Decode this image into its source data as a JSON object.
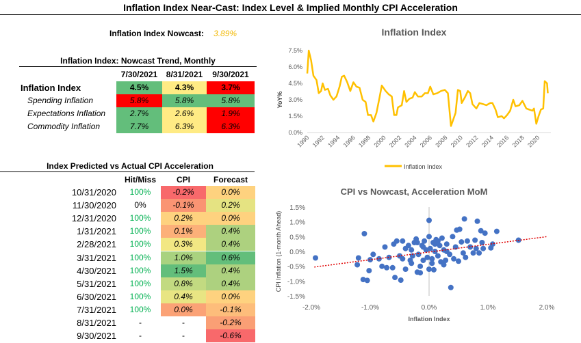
{
  "title": "Inflation Index Near-Cast: Index Level & Implied Monthly CPI Acceleration",
  "nowcast": {
    "label": "Inflation Index Nowcast:",
    "value": "3.89%"
  },
  "trend": {
    "title": "Inflation Index: Nowcast Trend, Monthly",
    "columns": [
      "7/30/2021",
      "8/31/2021",
      "9/30/2021"
    ],
    "rows": [
      {
        "label": "Inflation Index",
        "cells": [
          {
            "v": "4.5%",
            "c": "#63be7b"
          },
          {
            "v": "4.3%",
            "c": "#ffeb84"
          },
          {
            "v": "3.7%",
            "c": "#ff0000"
          }
        ]
      },
      {
        "label": "Spending Inflation",
        "cells": [
          {
            "v": "5.8%",
            "c": "#ff0000"
          },
          {
            "v": "5.8%",
            "c": "#63be7b"
          },
          {
            "v": "5.8%",
            "c": "#63be7b"
          }
        ]
      },
      {
        "label": "Expectations Inflation",
        "cells": [
          {
            "v": "2.7%",
            "c": "#63be7b"
          },
          {
            "v": "2.6%",
            "c": "#ffeb84"
          },
          {
            "v": "1.9%",
            "c": "#ff0000"
          }
        ]
      },
      {
        "label": "Commodity Inflation",
        "cells": [
          {
            "v": "7.7%",
            "c": "#63be7b"
          },
          {
            "v": "6.3%",
            "c": "#ffeb84"
          },
          {
            "v": "6.3%",
            "c": "#ff0000"
          }
        ]
      }
    ]
  },
  "accel": {
    "title": "Index Predicted vs Actual CPI Acceleration",
    "columns": [
      "Hit/Miss",
      "CPI",
      "Forecast"
    ],
    "hit_color": "#00b050",
    "rows": [
      {
        "date": "10/31/2020",
        "hit": "100%",
        "cpi": "-0.2%",
        "cpi_c": "#f8696b",
        "fc": "0.0%",
        "fc_c": "#fed27f"
      },
      {
        "date": "11/30/2020",
        "hit": "0%",
        "cpi": "-0.1%",
        "cpi_c": "#fa9473",
        "fc": "0.2%",
        "fc_c": "#e5e382"
      },
      {
        "date": "12/31/2020",
        "hit": "100%",
        "cpi": "0.2%",
        "cpi_c": "#fed27f",
        "fc": "0.0%",
        "fc_c": "#fed27f"
      },
      {
        "date": "1/31/2021",
        "hit": "100%",
        "cpi": "0.1%",
        "cpi_c": "#fcb079",
        "fc": "0.4%",
        "fc_c": "#add17f"
      },
      {
        "date": "2/28/2021",
        "hit": "100%",
        "cpi": "0.3%",
        "cpi_c": "#f2e783",
        "fc": "0.4%",
        "fc_c": "#add17f"
      },
      {
        "date": "3/31/2021",
        "hit": "100%",
        "cpi": "1.0%",
        "cpi_c": "#a9d27f",
        "fc": "0.6%",
        "fc_c": "#63be7b"
      },
      {
        "date": "4/30/2021",
        "hit": "100%",
        "cpi": "1.5%",
        "cpi_c": "#63be7b",
        "fc": "0.4%",
        "fc_c": "#add17f"
      },
      {
        "date": "5/31/2021",
        "hit": "100%",
        "cpi": "0.8%",
        "cpi_c": "#c2da81",
        "fc": "0.4%",
        "fc_c": "#add17f"
      },
      {
        "date": "6/30/2021",
        "hit": "100%",
        "cpi": "0.4%",
        "cpi_c": "#e8e583",
        "fc": "0.0%",
        "fc_c": "#fed27f"
      },
      {
        "date": "7/31/2021",
        "hit": "100%",
        "cpi": "0.0%",
        "cpi_c": "#fba276",
        "fc": "-0.1%",
        "fc_c": "#fdbd7b"
      },
      {
        "date": "8/31/2021",
        "hit": "-",
        "cpi": "-",
        "cpi_c": "",
        "fc": "-0.2%",
        "fc_c": "#fa9f75"
      },
      {
        "date": "9/30/2021",
        "hit": "-",
        "cpi": "-",
        "cpi_c": "",
        "fc": "-0.6%",
        "fc_c": "#f8696b"
      }
    ]
  },
  "chart_data": [
    {
      "type": "line",
      "title": "Inflation Index",
      "ylabel": "YoY%",
      "xlabel": "",
      "ylim": [
        0,
        7.5
      ],
      "yticks": [
        "0.0%",
        "1.5%",
        "3.0%",
        "4.5%",
        "6.0%",
        "7.5%"
      ],
      "xticks": [
        "1990",
        "1992",
        "1994",
        "1996",
        "1998",
        "2000",
        "2002",
        "2004",
        "2006",
        "2008",
        "2010",
        "2012",
        "2014",
        "2016",
        "2018",
        "2020"
      ],
      "legend": "Inflation Index",
      "legend_position": "bottom",
      "color": "#ffc000",
      "x": [
        1990.0,
        1990.2,
        1990.5,
        1990.8,
        1991.2,
        1991.5,
        1991.8,
        1992.0,
        1992.3,
        1992.7,
        1993.0,
        1993.4,
        1993.8,
        1994.2,
        1994.5,
        1994.8,
        1995.2,
        1995.6,
        1996.0,
        1996.4,
        1996.8,
        1997.2,
        1997.6,
        1997.9,
        1998.3,
        1998.6,
        1999.0,
        1999.4,
        1999.7,
        2000.2,
        2000.6,
        2001.0,
        2001.3,
        2001.6,
        2001.8,
        2002.3,
        2002.6,
        2002.9,
        2003.3,
        2003.7,
        2004.0,
        2004.4,
        2004.9,
        2005.3,
        2005.7,
        2006.0,
        2006.4,
        2006.9,
        2007.4,
        2007.9,
        2008.3,
        2008.7,
        2009.0,
        2009.3,
        2009.6,
        2009.9,
        2010.1,
        2010.5,
        2010.9,
        2011.2,
        2011.5,
        2012.0,
        2012.4,
        2012.9,
        2013.3,
        2013.8,
        2014.1,
        2014.5,
        2014.8,
        2015.3,
        2015.6,
        2016.0,
        2016.4,
        2016.8,
        2017.1,
        2017.6,
        2018.0,
        2018.5,
        2018.9,
        2019.3,
        2019.5,
        2019.8,
        2020.1,
        2020.4,
        2020.7,
        2020.9,
        2021.2,
        2021.3
      ],
      "y": [
        5.4,
        7.5,
        6.6,
        5.2,
        4.8,
        3.6,
        3.8,
        4.5,
        3.9,
        4.0,
        3.4,
        3.0,
        3.3,
        4.2,
        5.1,
        5.2,
        4.6,
        3.8,
        4.6,
        4.2,
        4.1,
        3.0,
        2.8,
        1.6,
        1.6,
        1.0,
        1.8,
        3.2,
        4.3,
        3.8,
        3.5,
        3.3,
        1.6,
        1.6,
        2.3,
        2.5,
        3.8,
        2.8,
        3.1,
        3.2,
        3.7,
        3.3,
        3.3,
        3.6,
        3.6,
        4.2,
        3.5,
        3.6,
        3.8,
        3.9,
        3.6,
        0.6,
        1.2,
        1.8,
        3.9,
        3.8,
        2.7,
        3.2,
        3.8,
        3.6,
        2.6,
        2.2,
        2.7,
        2.6,
        2.5,
        2.7,
        2.7,
        2.1,
        1.4,
        1.5,
        1.3,
        1.6,
        2.0,
        3.0,
        2.4,
        2.5,
        2.9,
        2.2,
        2.1,
        2.0,
        2.2,
        0.8,
        1.5,
        2.1,
        2.2,
        4.7,
        4.5,
        3.6
      ]
    },
    {
      "type": "scatter",
      "title": "CPI vs Nowcast, Acceleration MoM",
      "xlabel": "Inflation Index",
      "ylabel": "CPI Inflation (1-month Ahead)",
      "xlim": [
        -2,
        2
      ],
      "ylim": [
        -1.5,
        1.5
      ],
      "xticks": [
        "-2.0%",
        "-1.0%",
        "0.0%",
        "1.0%",
        "2.0%"
      ],
      "yticks": [
        "-1.5%",
        "-1.0%",
        "-0.5%",
        "0.0%",
        "0.5%",
        "1.0%",
        "1.5%"
      ],
      "color": "#4472c4",
      "trendline": {
        "slope": 0.26,
        "intercept": -0.02,
        "color": "#e00000"
      },
      "points": [
        [
          -1.93,
          -0.22
        ],
        [
          -1.1,
          0.6
        ],
        [
          -1.2,
          -0.22
        ],
        [
          -1.22,
          -0.45
        ],
        [
          -1.12,
          -0.95
        ],
        [
          -1.05,
          -0.98
        ],
        [
          -1.02,
          -0.65
        ],
        [
          -1.0,
          -0.28
        ],
        [
          -0.95,
          -0.1
        ],
        [
          -0.85,
          -0.25
        ],
        [
          -0.8,
          -0.5
        ],
        [
          -0.75,
          0.15
        ],
        [
          -0.72,
          -0.55
        ],
        [
          -0.68,
          -0.2
        ],
        [
          -0.62,
          -0.55
        ],
        [
          -0.58,
          -0.88
        ],
        [
          -0.55,
          0.35
        ],
        [
          -0.5,
          -0.15
        ],
        [
          -0.48,
          -0.97
        ],
        [
          -0.45,
          0.35
        ],
        [
          -0.4,
          -0.6
        ],
        [
          -0.35,
          0.2
        ],
        [
          -0.32,
          -0.3
        ],
        [
          -0.3,
          0.05
        ],
        [
          -0.28,
          -0.15
        ],
        [
          -0.25,
          0.3
        ],
        [
          -0.22,
          0.42
        ],
        [
          -0.2,
          -0.7
        ],
        [
          -0.18,
          -0.1
        ],
        [
          -0.15,
          -0.72
        ],
        [
          -0.12,
          0.2
        ],
        [
          -0.1,
          -0.3
        ],
        [
          -0.08,
          0.35
        ],
        [
          -0.05,
          0.05
        ],
        [
          -0.03,
          -0.2
        ],
        [
          0.0,
          1.05
        ],
        [
          0.0,
          -0.6
        ],
        [
          0.0,
          0.5
        ],
        [
          0.02,
          0.1
        ],
        [
          0.05,
          -0.25
        ],
        [
          0.07,
          0.3
        ],
        [
          0.08,
          -0.62
        ],
        [
          0.1,
          0.0
        ],
        [
          0.12,
          0.4
        ],
        [
          0.15,
          -0.15
        ],
        [
          0.18,
          0.2
        ],
        [
          0.2,
          -0.35
        ],
        [
          0.22,
          0.45
        ],
        [
          0.25,
          0.05
        ],
        [
          0.28,
          -0.3
        ],
        [
          0.3,
          0.25
        ],
        [
          0.35,
          -0.1
        ],
        [
          0.37,
          -1.22
        ],
        [
          0.4,
          0.5
        ],
        [
          0.42,
          -0.25
        ],
        [
          0.45,
          0.15
        ],
        [
          0.47,
          0.72
        ],
        [
          0.5,
          -0.33
        ],
        [
          0.52,
          0.75
        ],
        [
          0.55,
          0.32
        ],
        [
          0.58,
          -0.05
        ],
        [
          0.6,
          1.1
        ],
        [
          0.62,
          -0.2
        ],
        [
          0.65,
          0.35
        ],
        [
          0.7,
          0.15
        ],
        [
          0.75,
          -0.05
        ],
        [
          0.78,
          0.38
        ],
        [
          0.8,
          0.1
        ],
        [
          0.82,
          1.02
        ],
        [
          0.85,
          -0.05
        ],
        [
          0.88,
          0.7
        ],
        [
          0.9,
          0.3
        ],
        [
          0.92,
          0.1
        ],
        [
          0.95,
          0.62
        ],
        [
          1.05,
          0.12
        ],
        [
          1.08,
          0.25
        ],
        [
          1.15,
          0.68
        ],
        [
          1.52,
          0.38
        ],
        [
          -0.6,
          0.25
        ],
        [
          -0.4,
          0.1
        ],
        [
          -0.2,
          0.3
        ],
        [
          0.15,
          0.35
        ],
        [
          0.3,
          0.0
        ],
        [
          -0.1,
          0.15
        ],
        [
          0.05,
          -0.4
        ],
        [
          -0.3,
          -0.4
        ],
        [
          0.25,
          -0.45
        ],
        [
          -0.15,
          -0.5
        ],
        [
          0.1,
          0.25
        ],
        [
          -0.45,
          -0.25
        ]
      ]
    }
  ]
}
